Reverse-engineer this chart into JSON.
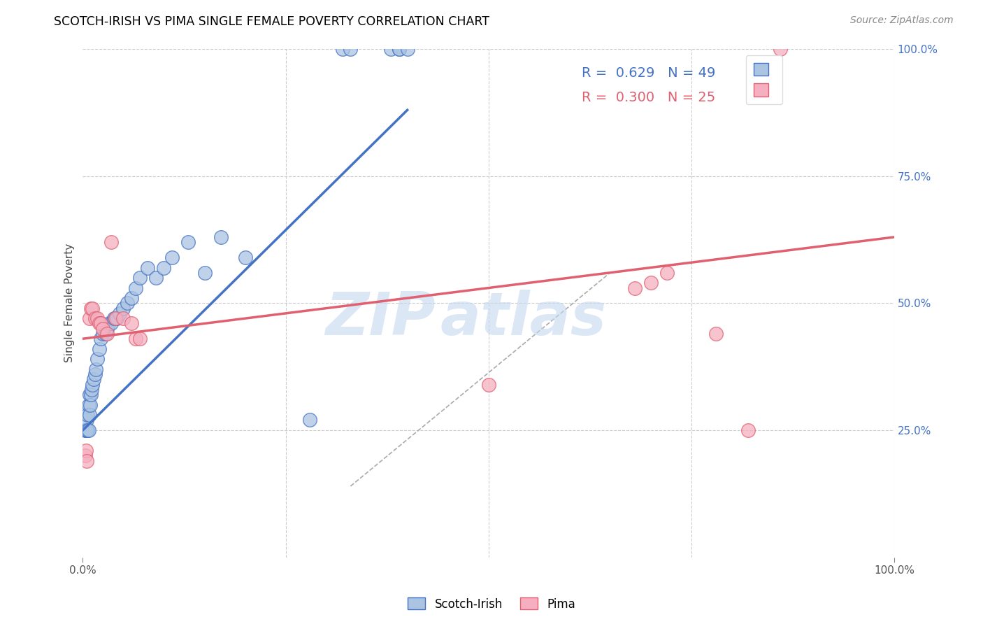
{
  "title": "SCOTCH-IRISH VS PIMA SINGLE FEMALE POVERTY CORRELATION CHART",
  "source": "Source: ZipAtlas.com",
  "ylabel": "Single Female Poverty",
  "scotch_irish_R": "0.629",
  "scotch_irish_N": "49",
  "pima_R": "0.300",
  "pima_N": "25",
  "scotch_irish_color": "#aac4e2",
  "pima_color": "#f5afc0",
  "scotch_irish_line_color": "#4472c4",
  "pima_line_color": "#e06070",
  "grid_color": "#cccccc",
  "scotch_irish_points": [
    [
      0.003,
      0.25
    ],
    [
      0.004,
      0.25
    ],
    [
      0.005,
      0.25
    ],
    [
      0.005,
      0.27
    ],
    [
      0.006,
      0.25
    ],
    [
      0.006,
      0.28
    ],
    [
      0.007,
      0.25
    ],
    [
      0.007,
      0.3
    ],
    [
      0.008,
      0.28
    ],
    [
      0.008,
      0.32
    ],
    [
      0.009,
      0.3
    ],
    [
      0.01,
      0.32
    ],
    [
      0.011,
      0.33
    ],
    [
      0.012,
      0.34
    ],
    [
      0.013,
      0.35
    ],
    [
      0.015,
      0.36
    ],
    [
      0.016,
      0.37
    ],
    [
      0.018,
      0.39
    ],
    [
      0.02,
      0.41
    ],
    [
      0.022,
      0.43
    ],
    [
      0.025,
      0.44
    ],
    [
      0.028,
      0.44
    ],
    [
      0.03,
      0.45
    ],
    [
      0.032,
      0.46
    ],
    [
      0.035,
      0.46
    ],
    [
      0.038,
      0.47
    ],
    [
      0.04,
      0.47
    ],
    [
      0.042,
      0.47
    ],
    [
      0.045,
      0.48
    ],
    [
      0.05,
      0.49
    ],
    [
      0.055,
      0.5
    ],
    [
      0.06,
      0.51
    ],
    [
      0.065,
      0.53
    ],
    [
      0.07,
      0.55
    ],
    [
      0.08,
      0.57
    ],
    [
      0.09,
      0.55
    ],
    [
      0.1,
      0.57
    ],
    [
      0.11,
      0.59
    ],
    [
      0.13,
      0.62
    ],
    [
      0.15,
      0.56
    ],
    [
      0.17,
      0.63
    ],
    [
      0.2,
      0.59
    ],
    [
      0.28,
      0.27
    ],
    [
      0.32,
      1.0
    ],
    [
      0.33,
      1.0
    ],
    [
      0.38,
      1.0
    ],
    [
      0.39,
      1.0
    ],
    [
      0.39,
      1.0
    ],
    [
      0.4,
      1.0
    ]
  ],
  "pima_points": [
    [
      0.003,
      0.2
    ],
    [
      0.004,
      0.21
    ],
    [
      0.005,
      0.19
    ],
    [
      0.008,
      0.47
    ],
    [
      0.01,
      0.49
    ],
    [
      0.012,
      0.49
    ],
    [
      0.015,
      0.47
    ],
    [
      0.018,
      0.47
    ],
    [
      0.02,
      0.46
    ],
    [
      0.022,
      0.46
    ],
    [
      0.025,
      0.45
    ],
    [
      0.03,
      0.44
    ],
    [
      0.035,
      0.62
    ],
    [
      0.04,
      0.47
    ],
    [
      0.05,
      0.47
    ],
    [
      0.06,
      0.46
    ],
    [
      0.065,
      0.43
    ],
    [
      0.07,
      0.43
    ],
    [
      0.5,
      0.34
    ],
    [
      0.68,
      0.53
    ],
    [
      0.7,
      0.54
    ],
    [
      0.72,
      0.56
    ],
    [
      0.78,
      0.44
    ],
    [
      0.82,
      0.25
    ],
    [
      0.86,
      1.0
    ]
  ],
  "blue_line": [
    [
      0.0,
      0.25
    ],
    [
      0.4,
      0.88
    ]
  ],
  "pink_line": [
    [
      0.0,
      0.43
    ],
    [
      1.0,
      0.63
    ]
  ],
  "dash_line": [
    [
      0.33,
      0.14
    ],
    [
      0.65,
      0.56
    ]
  ]
}
